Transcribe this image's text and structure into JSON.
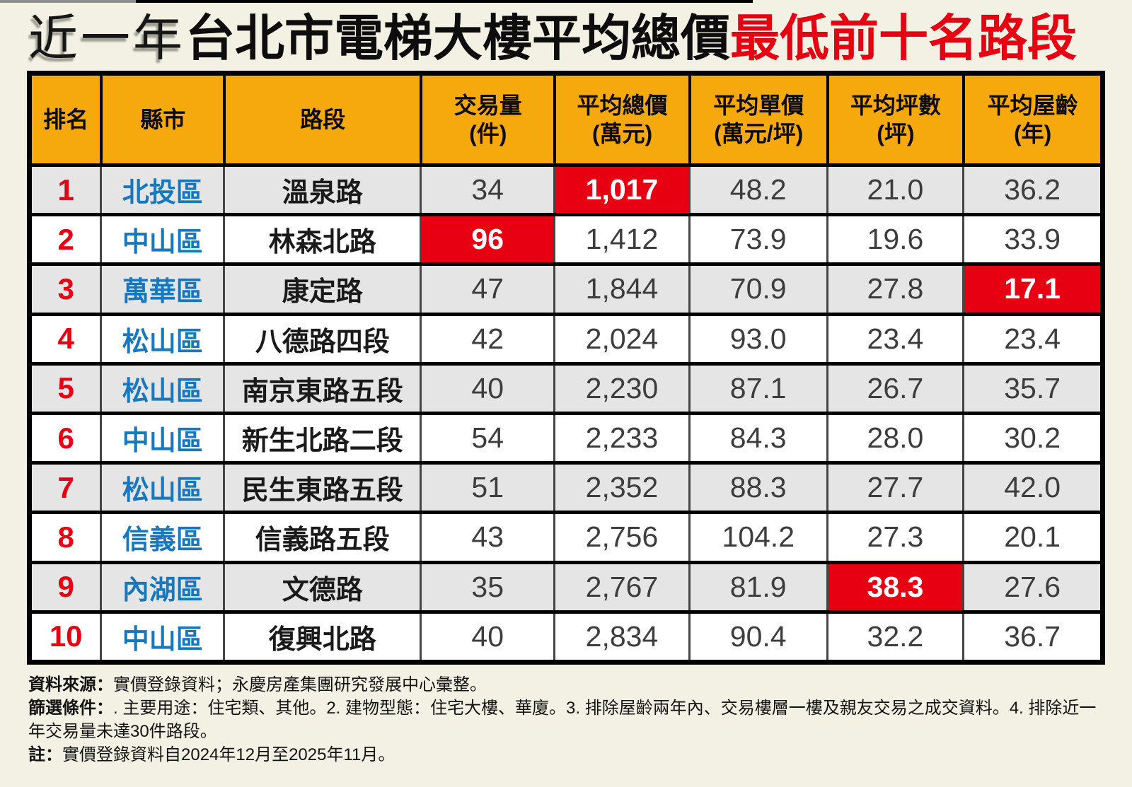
{
  "title": {
    "prefix": "近一年",
    "main": "台北市電梯大樓平均總價",
    "accent": "最低前十名路段"
  },
  "table": {
    "headers": [
      "排名",
      "縣市",
      "路段",
      "交易量\n(件)",
      "平均總價\n(萬元)",
      "平均單價\n(萬元/坪)",
      "平均坪數\n(坪)",
      "平均屋齡\n(年)"
    ],
    "rows": [
      {
        "cells": [
          "1",
          "北投區",
          "溫泉路",
          "34",
          "1,017",
          "48.2",
          "21.0",
          "36.2"
        ],
        "highlight": 4
      },
      {
        "cells": [
          "2",
          "中山區",
          "林森北路",
          "96",
          "1,412",
          "73.9",
          "19.6",
          "33.9"
        ],
        "highlight": 3
      },
      {
        "cells": [
          "3",
          "萬華區",
          "康定路",
          "47",
          "1,844",
          "70.9",
          "27.8",
          "17.1"
        ],
        "highlight": 7
      },
      {
        "cells": [
          "4",
          "松山區",
          "八德路四段",
          "42",
          "2,024",
          "93.0",
          "23.4",
          "23.4"
        ],
        "highlight": -1
      },
      {
        "cells": [
          "5",
          "松山區",
          "南京東路五段",
          "40",
          "2,230",
          "87.1",
          "26.7",
          "35.7"
        ],
        "highlight": -1
      },
      {
        "cells": [
          "6",
          "中山區",
          "新生北路二段",
          "54",
          "2,233",
          "84.3",
          "28.0",
          "30.2"
        ],
        "highlight": -1
      },
      {
        "cells": [
          "7",
          "松山區",
          "民生東路五段",
          "51",
          "2,352",
          "88.3",
          "27.7",
          "42.0"
        ],
        "highlight": -1
      },
      {
        "cells": [
          "8",
          "信義區",
          "信義路五段",
          "43",
          "2,756",
          "104.2",
          "27.3",
          "20.1"
        ],
        "highlight": -1
      },
      {
        "cells": [
          "9",
          "內湖區",
          "文德路",
          "35",
          "2,767",
          "81.9",
          "38.3",
          "27.6"
        ],
        "highlight": 6
      },
      {
        "cells": [
          "10",
          "中山區",
          "復興北路",
          "40",
          "2,834",
          "90.4",
          "32.2",
          "36.7"
        ],
        "highlight": -1
      }
    ]
  },
  "footer": {
    "source_label": "資料來源：",
    "source_text": "實價登錄資料；永慶房產集團研究發展中心彙整。",
    "filter_label": "篩選條件：",
    "filter_text": ". 主要用途：住宅類、其他。2. 建物型態：住宅大樓、華廈。3. 排除屋齡兩年內、交易樓層一樓及親友交易之成交資料。4. 排除近一年交易量未達30件路段。",
    "note_label": "註：",
    "note_text": "實價登錄資料自2024年12月至2025年11月。"
  },
  "colors": {
    "accent_red": "#e60012",
    "header_amber": "#f6a90d",
    "district_blue": "#1878be",
    "row_alt_gray": "#e5e5e5",
    "page_background": "#f2f1e3"
  },
  "chart_data": {
    "type": "table",
    "title": "近一年台北市電梯大樓平均總價最低前十名路段",
    "columns": [
      "排名",
      "縣市",
      "路段",
      "交易量(件)",
      "平均總價(萬元)",
      "平均單價(萬元/坪)",
      "平均坪數(坪)",
      "平均屋齡(年)"
    ],
    "rows": [
      [
        1,
        "北投區",
        "溫泉路",
        34,
        1017,
        48.2,
        21.0,
        36.2
      ],
      [
        2,
        "中山區",
        "林森北路",
        96,
        1412,
        73.9,
        19.6,
        33.9
      ],
      [
        3,
        "萬華區",
        "康定路",
        47,
        1844,
        70.9,
        27.8,
        17.1
      ],
      [
        4,
        "松山區",
        "八德路四段",
        42,
        2024,
        93.0,
        23.4,
        23.4
      ],
      [
        5,
        "松山區",
        "南京東路五段",
        40,
        2230,
        87.1,
        26.7,
        35.7
      ],
      [
        6,
        "中山區",
        "新生北路二段",
        54,
        2233,
        84.3,
        28.0,
        30.2
      ],
      [
        7,
        "松山區",
        "民生東路五段",
        51,
        2352,
        88.3,
        27.7,
        42.0
      ],
      [
        8,
        "信義區",
        "信義路五段",
        43,
        2756,
        104.2,
        27.3,
        20.1
      ],
      [
        9,
        "內湖區",
        "文德路",
        35,
        2767,
        81.9,
        38.3,
        27.6
      ],
      [
        10,
        "中山區",
        "復興北路",
        40,
        2834,
        90.4,
        32.2,
        36.7
      ]
    ],
    "highlighted_cells": [
      {
        "rank": 1,
        "column": "平均總價(萬元)",
        "value": 1017
      },
      {
        "rank": 2,
        "column": "交易量(件)",
        "value": 96
      },
      {
        "rank": 3,
        "column": "平均屋齡(年)",
        "value": 17.1
      },
      {
        "rank": 9,
        "column": "平均坪數(坪)",
        "value": 38.3
      }
    ]
  }
}
